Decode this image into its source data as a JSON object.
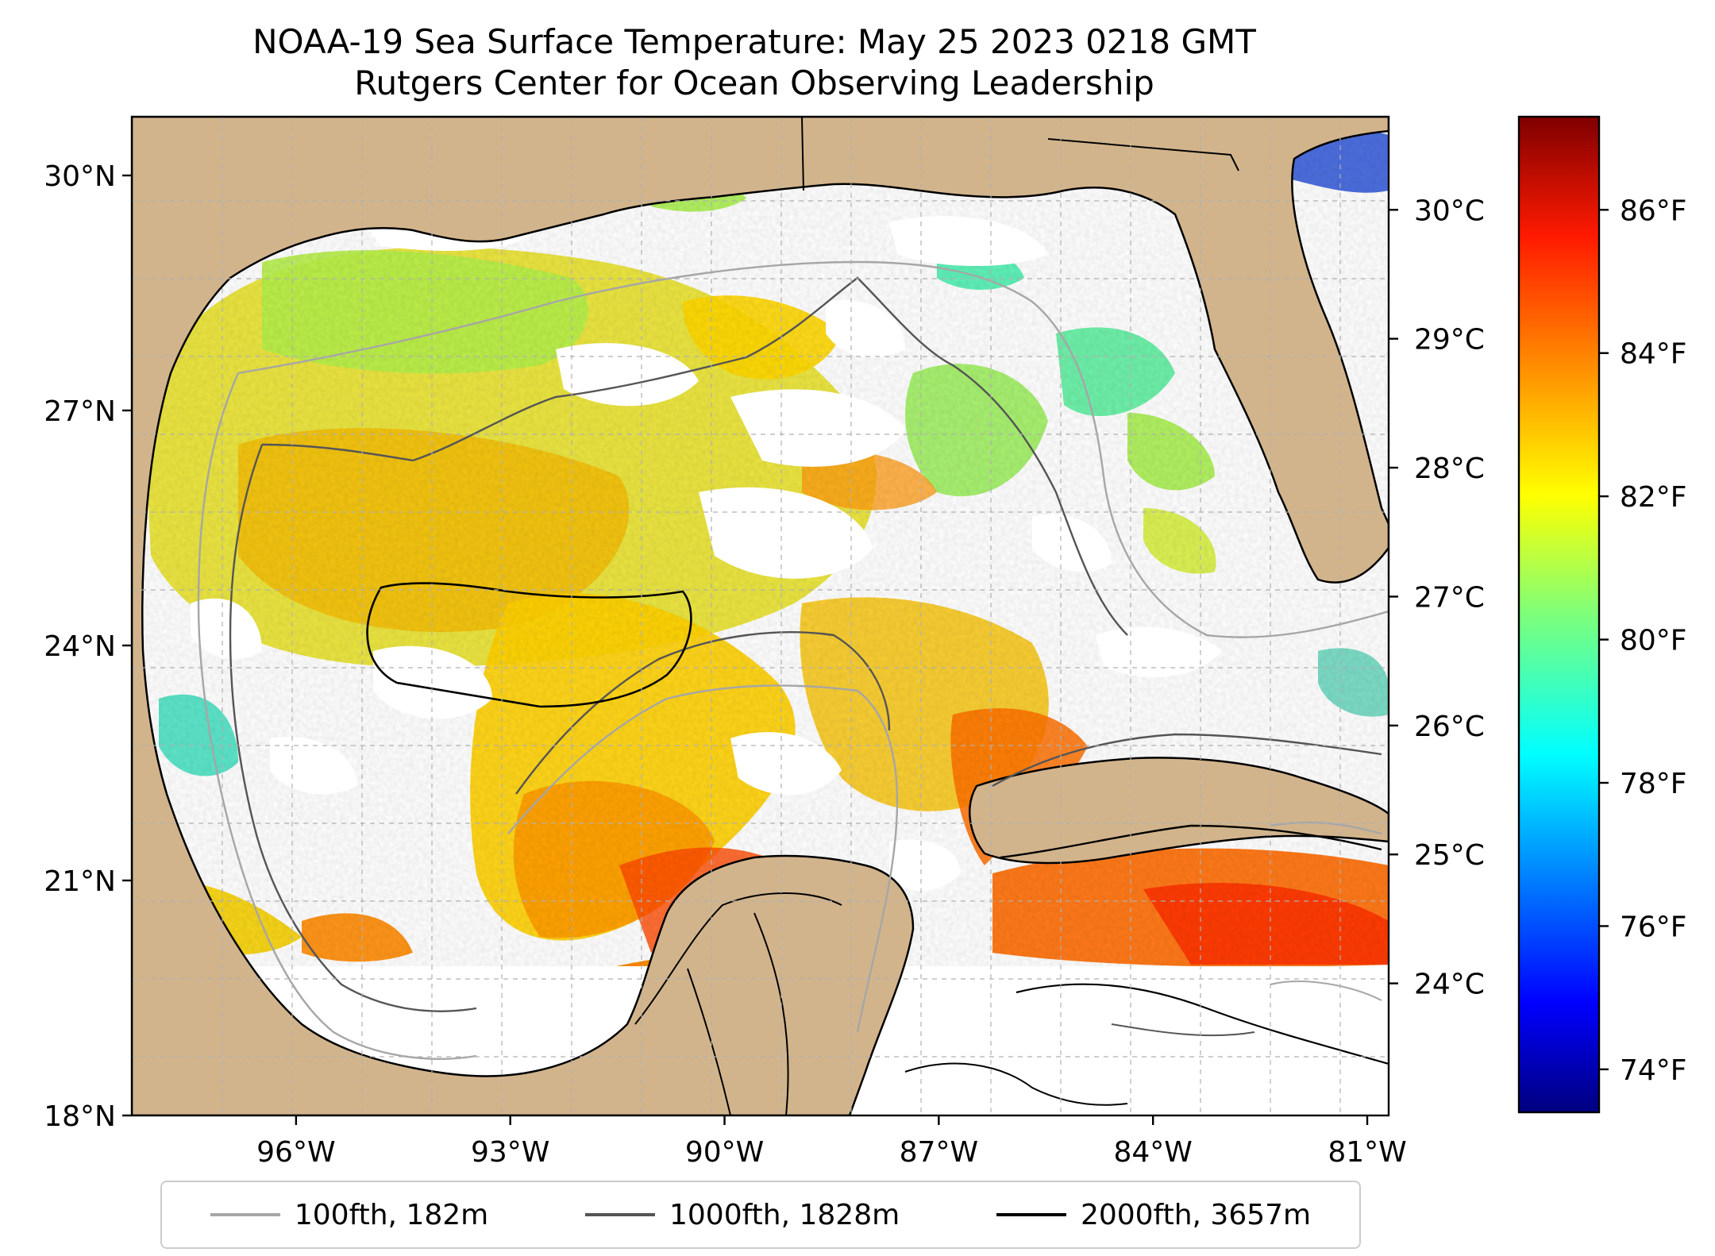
{
  "title": "NOAA-19 Sea Surface Temperature: May 25 2023 0218 GMT",
  "subtitle": "Rutgers Center for Ocean Observing Leadership",
  "map": {
    "lon_range": [
      -98.3,
      -80.7
    ],
    "lat_range": [
      18.0,
      30.75
    ],
    "lat_ticks": [
      "30°N",
      "27°N",
      "24°N",
      "21°N",
      "18°N"
    ],
    "lat_tick_values": [
      30,
      27,
      24,
      21,
      18
    ],
    "lon_ticks": [
      "96°W",
      "93°W",
      "90°W",
      "87°W",
      "84°W",
      "81°W"
    ],
    "lon_tick_values": [
      -96,
      -93,
      -90,
      -87,
      -84,
      -81
    ],
    "land_color": "#d2b48c",
    "grid": "dashed"
  },
  "colorbar": {
    "colormap": "jet",
    "celsius_labels": [
      "30°C",
      "29°C",
      "28°C",
      "27°C",
      "26°C",
      "25°C",
      "24°C"
    ],
    "celsius_values": [
      30,
      29,
      28,
      27,
      26,
      25,
      24
    ],
    "fahrenheit_labels": [
      "86°F",
      "84°F",
      "82°F",
      "80°F",
      "78°F",
      "76°F",
      "74°F"
    ],
    "fahrenheit_values": [
      86,
      84,
      82,
      80,
      78,
      76,
      74
    ],
    "range_f": [
      73.4,
      87.3
    ]
  },
  "legend": {
    "items": [
      {
        "label": "100fth, 182m",
        "color": "#a6a6a6"
      },
      {
        "label": "1000fth, 1828m",
        "color": "#555555"
      },
      {
        "label": "2000fth, 3657m",
        "color": "#000000"
      }
    ]
  }
}
